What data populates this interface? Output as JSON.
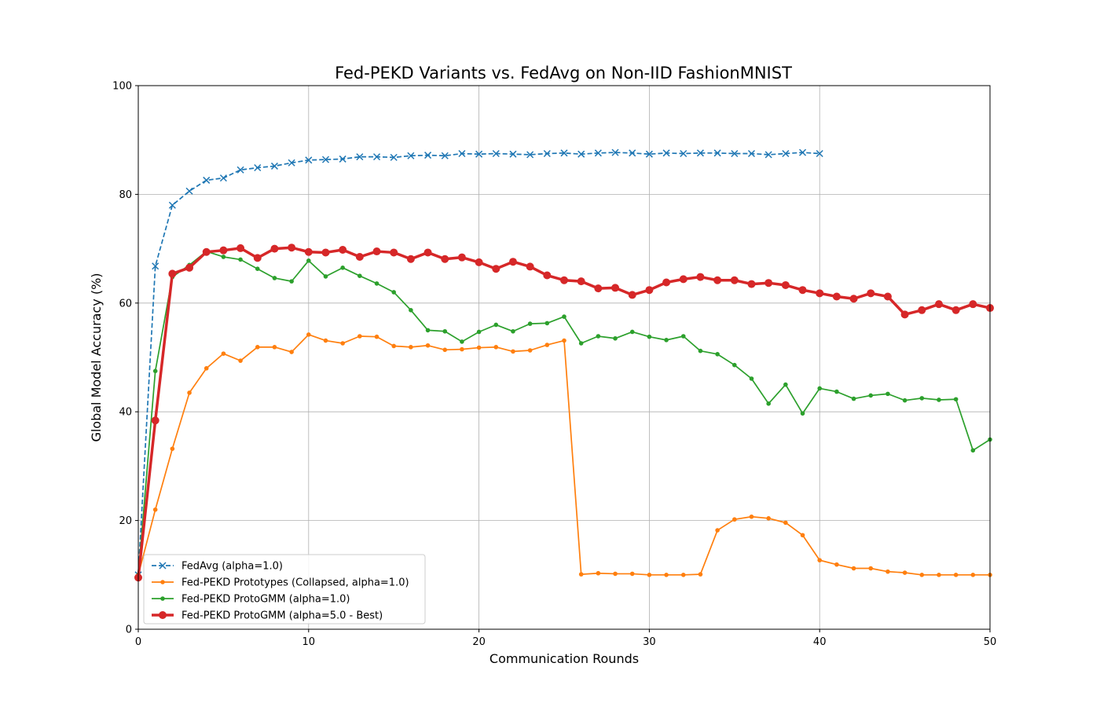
{
  "chart_data": {
    "type": "line",
    "title": "Fed-PEKD Variants vs. FedAvg on Non-IID FashionMNIST",
    "xlabel": "Communication Rounds",
    "ylabel": "Global Model Accuracy (%)",
    "xlim": [
      0,
      50
    ],
    "ylim": [
      0,
      100
    ],
    "xticks": [
      "0",
      "10",
      "20",
      "30",
      "40",
      "50"
    ],
    "yticks": [
      "0",
      "20",
      "40",
      "60",
      "80",
      "100"
    ],
    "grid": true,
    "legend_position": "lower-left",
    "series": [
      {
        "name": "FedAvg (alpha=1.0)",
        "color": "#1f77b4",
        "style": "dashed",
        "marker": "x",
        "x": [
          0,
          1,
          2,
          3,
          4,
          5,
          6,
          7,
          8,
          9,
          10,
          11,
          12,
          13,
          14,
          15,
          16,
          17,
          18,
          19,
          20,
          21,
          22,
          23,
          24,
          25,
          26,
          27,
          28,
          29,
          30,
          31,
          32,
          33,
          34,
          35,
          36,
          37,
          38,
          39,
          40
        ],
        "y": [
          10.0,
          66.8,
          78.0,
          80.6,
          82.6,
          83.0,
          84.5,
          84.9,
          85.2,
          85.8,
          86.3,
          86.4,
          86.5,
          86.9,
          86.9,
          86.8,
          87.1,
          87.2,
          87.1,
          87.5,
          87.4,
          87.5,
          87.4,
          87.3,
          87.5,
          87.6,
          87.4,
          87.6,
          87.7,
          87.6,
          87.4,
          87.6,
          87.5,
          87.6,
          87.6,
          87.5,
          87.5,
          87.3,
          87.5,
          87.7,
          87.5
        ]
      },
      {
        "name": "Fed-PEKD Prototypes (Collapsed, alpha=1.0)",
        "color": "#ff7f0e",
        "style": "solid",
        "marker": "dot",
        "x": [
          0,
          1,
          2,
          3,
          4,
          5,
          6,
          7,
          8,
          9,
          10,
          11,
          12,
          13,
          14,
          15,
          16,
          17,
          18,
          19,
          20,
          21,
          22,
          23,
          24,
          25,
          26,
          27,
          28,
          29,
          30,
          31,
          32,
          33,
          34,
          35,
          36,
          37,
          38,
          39,
          40,
          41,
          42,
          43,
          44,
          45,
          46,
          47,
          48,
          49,
          50
        ],
        "y": [
          10.0,
          22.0,
          33.2,
          43.5,
          48.0,
          50.7,
          49.4,
          51.9,
          51.9,
          51.0,
          54.2,
          53.1,
          52.6,
          53.9,
          53.8,
          52.1,
          51.9,
          52.2,
          51.4,
          51.5,
          51.8,
          51.9,
          51.1,
          51.3,
          52.3,
          53.1,
          10.1,
          10.3,
          10.2,
          10.2,
          10.0,
          10.0,
          10.0,
          10.1,
          18.2,
          20.2,
          20.7,
          20.4,
          19.6,
          17.3,
          12.7,
          11.9,
          11.2,
          11.2,
          10.6,
          10.4,
          10.0,
          10.0,
          10.0,
          10.0,
          10.0
        ]
      },
      {
        "name": "Fed-PEKD ProtoGMM (alpha=1.0)",
        "color": "#2ca02c",
        "style": "solid",
        "marker": "dot",
        "x": [
          0,
          1,
          2,
          3,
          4,
          5,
          6,
          7,
          8,
          9,
          10,
          11,
          12,
          13,
          14,
          15,
          16,
          17,
          18,
          19,
          20,
          21,
          22,
          23,
          24,
          25,
          26,
          27,
          28,
          29,
          30,
          31,
          32,
          33,
          34,
          35,
          36,
          37,
          38,
          39,
          40,
          41,
          42,
          43,
          44,
          45,
          46,
          47,
          48,
          49,
          50
        ],
        "y": [
          10.0,
          47.5,
          64.8,
          67.0,
          69.5,
          68.5,
          68.0,
          66.3,
          64.6,
          64.0,
          67.8,
          64.9,
          66.5,
          65.0,
          63.6,
          62.0,
          58.7,
          55.0,
          54.8,
          52.9,
          54.7,
          56.0,
          54.8,
          56.2,
          56.3,
          57.5,
          52.6,
          53.9,
          53.5,
          54.7,
          53.8,
          53.2,
          53.9,
          51.2,
          50.6,
          48.6,
          46.1,
          41.5,
          45.0,
          39.7,
          44.3,
          43.7,
          42.4,
          43.0,
          43.3,
          42.1,
          42.5,
          42.2,
          42.3,
          32.9,
          34.9
        ]
      },
      {
        "name": "Fed-PEKD ProtoGMM (alpha=5.0 - Best)",
        "color": "#d62728",
        "style": "solid",
        "marker": "dot-large",
        "x": [
          0,
          1,
          2,
          3,
          4,
          5,
          6,
          7,
          8,
          9,
          10,
          11,
          12,
          13,
          14,
          15,
          16,
          17,
          18,
          19,
          20,
          21,
          22,
          23,
          24,
          25,
          26,
          27,
          28,
          29,
          30,
          31,
          32,
          33,
          34,
          35,
          36,
          37,
          38,
          39,
          40,
          41,
          42,
          43,
          44,
          45,
          46,
          47,
          48,
          49,
          50
        ],
        "y": [
          9.5,
          38.4,
          65.4,
          66.5,
          69.4,
          69.7,
          70.1,
          68.3,
          70.0,
          70.2,
          69.4,
          69.3,
          69.8,
          68.5,
          69.5,
          69.3,
          68.1,
          69.3,
          68.1,
          68.4,
          67.5,
          66.3,
          67.6,
          66.7,
          65.1,
          64.2,
          64.0,
          62.7,
          62.8,
          61.5,
          62.4,
          63.8,
          64.4,
          64.8,
          64.2,
          64.2,
          63.5,
          63.7,
          63.3,
          62.4,
          61.8,
          61.2,
          60.8,
          61.8,
          61.2,
          57.9,
          58.7,
          59.8,
          58.7,
          59.8,
          59.1
        ]
      }
    ]
  }
}
